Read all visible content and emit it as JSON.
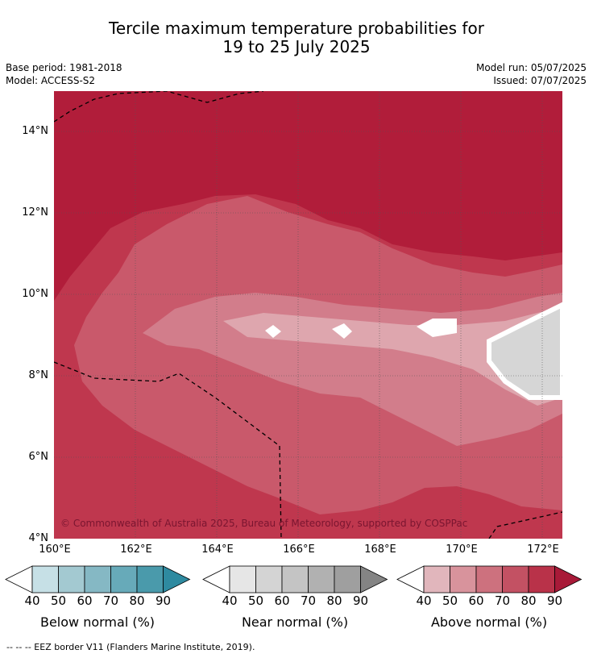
{
  "header": {
    "title_line1": "Tercile maximum temperature probabilities for",
    "title_line2": "19 to 25 July 2025",
    "base_period": "Base period: 1981-2018",
    "model": "Model: ACCESS-S2",
    "model_run": "Model run: 05/07/2025",
    "issued": "Issued: 07/07/2025"
  },
  "map": {
    "lat_labels": [
      "14°N",
      "12°N",
      "10°N",
      "8°N",
      "6°N",
      "4°N"
    ],
    "lon_labels": [
      "160°E",
      "162°E",
      "164°E",
      "166°E",
      "168°E",
      "170°E",
      "172°E"
    ],
    "copyright": "© Commonwealth of Australia 2025, Bureau of Meteorology, supported by COSPPac",
    "colors": {
      "above_90": "#b11d3a",
      "above_80": "#bf374e",
      "above_70": "#c9596b",
      "above_60": "#d27d8b",
      "above_50": "#dea6ae",
      "near_50": "#d6d6d6",
      "white": "#ffffff"
    }
  },
  "colorbars": [
    {
      "label": "Below normal (%)",
      "ticks": [
        "40",
        "50",
        "60",
        "70",
        "80",
        "90"
      ],
      "colors": [
        "#c6e0e6",
        "#a3c9d1",
        "#85b8c4",
        "#67aab9",
        "#4a9aab",
        "#2e8aa0"
      ]
    },
    {
      "label": "Near normal (%)",
      "ticks": [
        "40",
        "50",
        "60",
        "70",
        "80",
        "90"
      ],
      "colors": [
        "#e6e6e6",
        "#d4d4d4",
        "#c4c4c4",
        "#b1b1b1",
        "#9f9f9f",
        "#848484"
      ]
    },
    {
      "label": "Above normal (%)",
      "ticks": [
        "40",
        "50",
        "60",
        "70",
        "80",
        "90"
      ],
      "colors": [
        "#e1b6bc",
        "#d8939c",
        "#cd717e",
        "#c35163",
        "#b93249",
        "#a81a38"
      ]
    }
  ],
  "footer": "--  --  -- EEZ border V11 (Flanders Marine Institute, 2019)."
}
